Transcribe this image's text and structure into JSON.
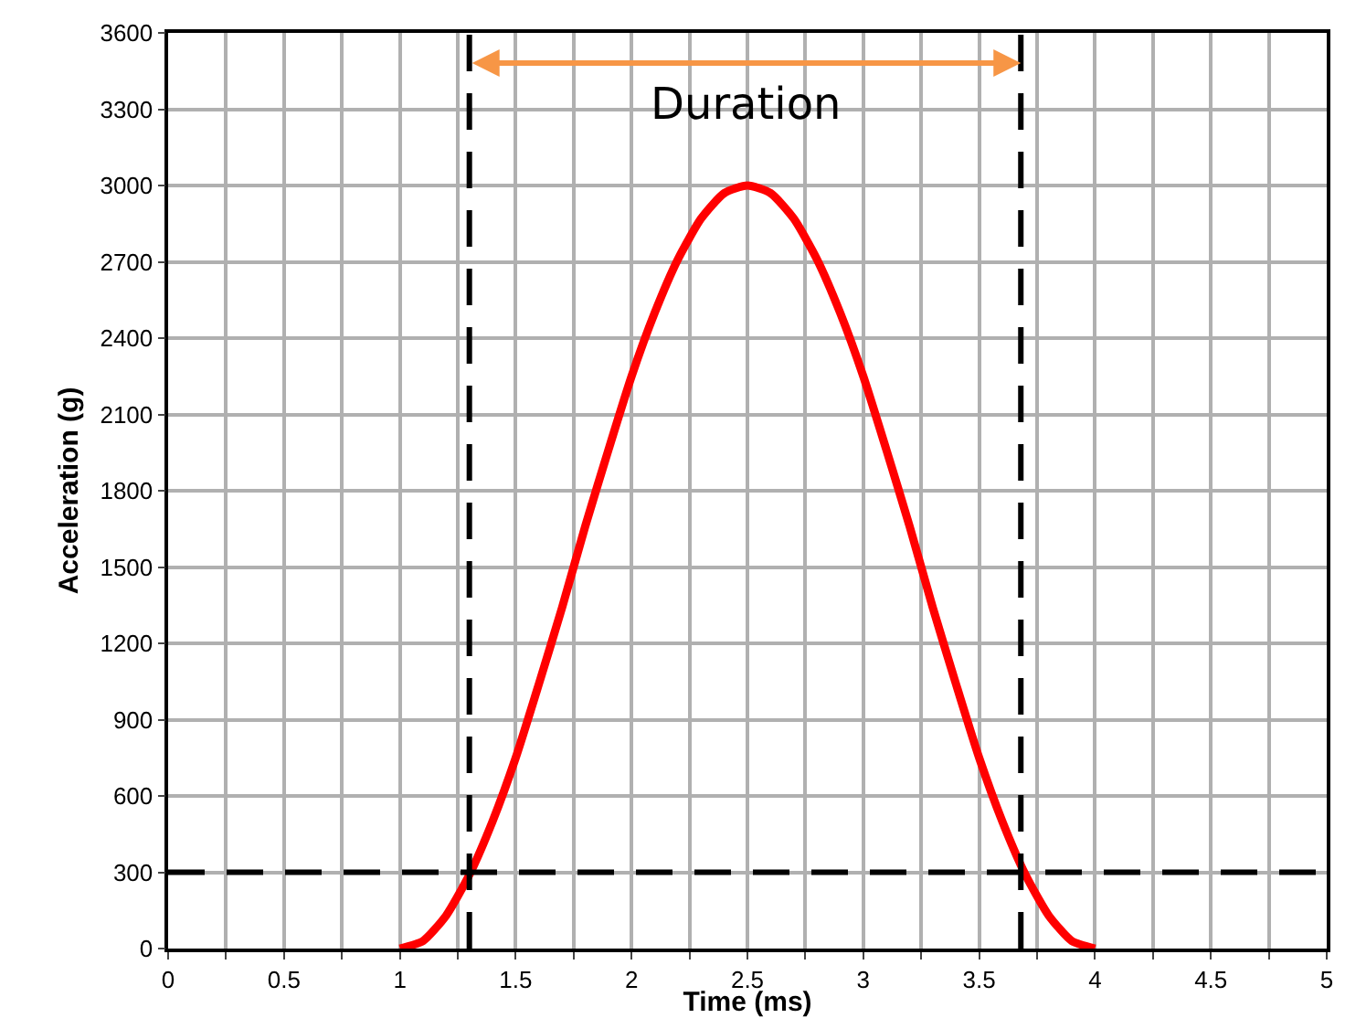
{
  "chart_data": {
    "type": "line",
    "xlabel": "Time (ms)",
    "ylabel": "Acceleration (g)",
    "series": [
      {
        "color": "#ff0000",
        "x": [
          1.0,
          1.1,
          1.2,
          1.3,
          1.4,
          1.5,
          1.6,
          1.7,
          1.8,
          1.9,
          2.0,
          2.1,
          2.2,
          2.3,
          2.4,
          2.5,
          2.6,
          2.7,
          2.8,
          2.9,
          3.0,
          3.1,
          3.2,
          3.3,
          3.4,
          3.5,
          3.6,
          3.7,
          3.8,
          3.9,
          4.0
        ],
        "values": [
          0,
          30,
          130,
          290,
          500,
          750,
          1040,
          1340,
          1660,
          1960,
          2250,
          2500,
          2710,
          2870,
          2970,
          3000,
          2970,
          2870,
          2710,
          2500,
          2250,
          1960,
          1660,
          1340,
          1040,
          750,
          500,
          290,
          130,
          30,
          0
        ]
      }
    ],
    "xlim": [
      0,
      5
    ],
    "xticks": [
      0,
      {
        "value": 0.25,
        "label": null
      },
      0.5,
      {
        "value": 0.75,
        "label": null
      },
      1,
      {
        "value": 1.25,
        "label": null
      },
      1.5,
      {
        "value": 1.75,
        "label": null
      },
      2,
      {
        "value": 2.25,
        "label": null
      },
      2.5,
      {
        "value": 2.75,
        "label": null
      },
      3,
      {
        "value": 3.25,
        "label": null
      },
      3.5,
      {
        "value": 3.75,
        "label": null
      },
      4,
      {
        "value": 4.25,
        "label": null
      },
      4.5,
      {
        "value": 4.75,
        "label": null
      },
      5
    ],
    "ylim": [
      0,
      3600
    ],
    "yticks": [
      0,
      300,
      600,
      900,
      1200,
      1500,
      1800,
      2100,
      2400,
      2700,
      3000,
      3300,
      3600
    ],
    "grid": true,
    "marker": "none",
    "line_style": "solid",
    "ref_lines": [
      {
        "axis": "x",
        "value": 1.3,
        "color": "#000000",
        "line_style": "dashed"
      },
      {
        "axis": "x",
        "value": 3.68,
        "color": "#000000",
        "line_style": "dashed"
      },
      {
        "axis": "y",
        "value": 300,
        "color": "#000000",
        "line_style": "dashed"
      }
    ],
    "annotations": [
      "Duration"
    ]
  }
}
